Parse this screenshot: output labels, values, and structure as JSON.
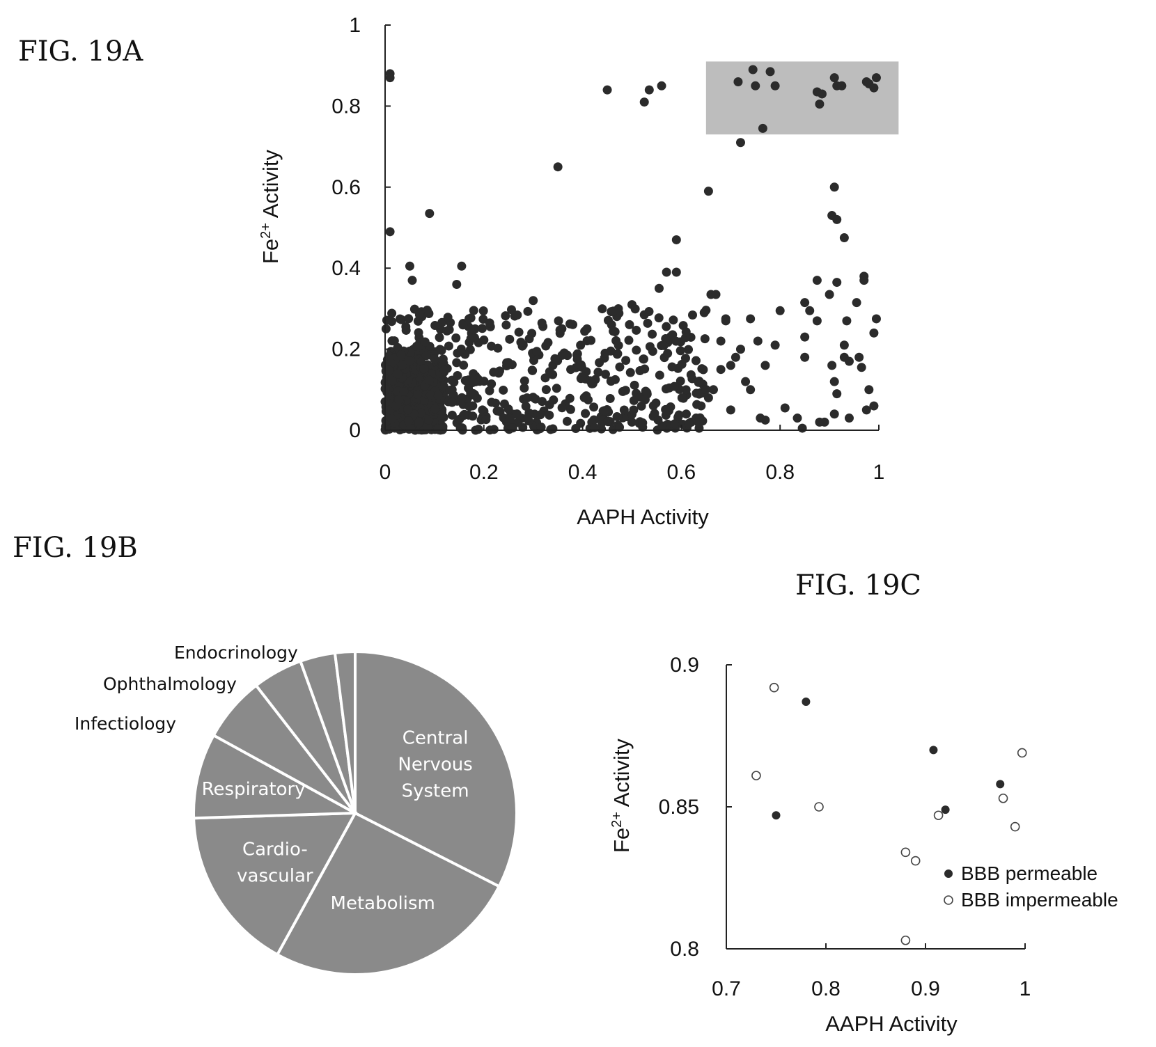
{
  "figures": {
    "a_label": "FIG. 19A",
    "b_label": "FIG. 19B",
    "c_label": "FIG. 19C"
  },
  "colors": {
    "point": "#2b2b2b",
    "highlight": "#bdbdbd",
    "pie": "#8a8a8a",
    "pie_line": "#ffffff"
  },
  "chart_data": [
    {
      "type": "scatter",
      "name": "FIG. 19A",
      "xlabel": "AAPH Activity",
      "ylabel": "Fe2+ Activity",
      "xlim": [
        0,
        1
      ],
      "ylim": [
        0,
        1
      ],
      "xticks": [
        "0",
        "0.2",
        "0.4",
        "0.6",
        "0.8",
        "1"
      ],
      "yticks": [
        "0",
        "0.2",
        "0.4",
        "0.6",
        "0.8",
        "1"
      ],
      "highlight_region": {
        "x": [
          0.65,
          1.04
        ],
        "y": [
          0.73,
          0.91
        ]
      },
      "points": [
        [
          0.01,
          0.88
        ],
        [
          0.01,
          0.87
        ],
        [
          0.01,
          0.49
        ],
        [
          0.09,
          0.535
        ],
        [
          0.35,
          0.65
        ],
        [
          0.45,
          0.84
        ],
        [
          0.525,
          0.81
        ],
        [
          0.535,
          0.84
        ],
        [
          0.56,
          0.85
        ],
        [
          0.745,
          0.89
        ],
        [
          0.715,
          0.86
        ],
        [
          0.75,
          0.85
        ],
        [
          0.78,
          0.885
        ],
        [
          0.79,
          0.85
        ],
        [
          0.72,
          0.71
        ],
        [
          0.765,
          0.745
        ],
        [
          0.875,
          0.835
        ],
        [
          0.885,
          0.83
        ],
        [
          0.88,
          0.805
        ],
        [
          0.91,
          0.87
        ],
        [
          0.915,
          0.85
        ],
        [
          0.925,
          0.85
        ],
        [
          0.975,
          0.86
        ],
        [
          0.98,
          0.855
        ],
        [
          0.99,
          0.845
        ],
        [
          0.995,
          0.87
        ],
        [
          0.655,
          0.59
        ],
        [
          0.91,
          0.6
        ],
        [
          0.905,
          0.53
        ],
        [
          0.915,
          0.52
        ],
        [
          0.93,
          0.475
        ],
        [
          0.59,
          0.47
        ],
        [
          0.05,
          0.405
        ],
        [
          0.155,
          0.405
        ],
        [
          0.145,
          0.36
        ],
        [
          0.055,
          0.37
        ],
        [
          0.57,
          0.39
        ],
        [
          0.59,
          0.39
        ],
        [
          0.555,
          0.35
        ],
        [
          0.3,
          0.32
        ],
        [
          0.5,
          0.31
        ],
        [
          0.525,
          0.285
        ],
        [
          0.66,
          0.335
        ],
        [
          0.67,
          0.335
        ],
        [
          0.97,
          0.38
        ],
        [
          0.97,
          0.37
        ],
        [
          0.875,
          0.37
        ],
        [
          0.915,
          0.365
        ],
        [
          0.955,
          0.315
        ],
        [
          0.9,
          0.335
        ],
        [
          0.995,
          0.275
        ],
        [
          0.99,
          0.24
        ],
        [
          0.85,
          0.315
        ],
        [
          0.86,
          0.295
        ],
        [
          0.8,
          0.295
        ],
        [
          0.74,
          0.275
        ],
        [
          0.69,
          0.275
        ],
        [
          0.935,
          0.27
        ],
        [
          0.875,
          0.27
        ],
        [
          0.99,
          0.06
        ],
        [
          0.975,
          0.05
        ],
        [
          0.98,
          0.1
        ],
        [
          0.965,
          0.155
        ],
        [
          0.96,
          0.18
        ],
        [
          0.905,
          0.16
        ],
        [
          0.91,
          0.12
        ],
        [
          0.915,
          0.09
        ],
        [
          0.91,
          0.04
        ],
        [
          0.94,
          0.03
        ],
        [
          0.88,
          0.02
        ],
        [
          0.89,
          0.02
        ],
        [
          0.845,
          0.005
        ],
        [
          0.835,
          0.03
        ],
        [
          0.81,
          0.055
        ],
        [
          0.77,
          0.025
        ],
        [
          0.76,
          0.03
        ],
        [
          0.7,
          0.05
        ],
        [
          0.73,
          0.12
        ],
        [
          0.74,
          0.1
        ],
        [
          0.68,
          0.15
        ],
        [
          0.665,
          0.1
        ],
        [
          0.655,
          0.08
        ],
        [
          0.64,
          0.06
        ],
        [
          0.63,
          0.03
        ],
        [
          0.62,
          0.02
        ],
        [
          0.61,
          0.04
        ],
        [
          0.72,
          0.2
        ],
        [
          0.71,
          0.18
        ],
        [
          0.85,
          0.18
        ],
        [
          0.93,
          0.21
        ],
        [
          0.93,
          0.18
        ],
        [
          0.94,
          0.17
        ],
        [
          0.85,
          0.23
        ],
        [
          0.79,
          0.21
        ],
        [
          0.77,
          0.16
        ],
        [
          0.755,
          0.22
        ],
        [
          0.7,
          0.16
        ],
        [
          0.69,
          0.27
        ],
        [
          0.68,
          0.22
        ]
      ],
      "cluster": [
        {
          "x": [
            0.0,
            0.12
          ],
          "y": [
            0.0,
            0.2
          ],
          "n": 420
        },
        {
          "x": [
            0.0,
            0.2
          ],
          "y": [
            0.0,
            0.3
          ],
          "n": 230
        },
        {
          "x": [
            0.2,
            0.65
          ],
          "y": [
            0.0,
            0.3
          ],
          "n": 300
        }
      ]
    },
    {
      "type": "pie",
      "name": "FIG. 19B",
      "labels": [
        "Central Nervous System",
        "Metabolism",
        "Cardio- vascular",
        "Respiratory",
        "Infectiology",
        "Ophthalmology",
        "Endocrinology",
        ""
      ],
      "label_lines": [
        [
          "Central",
          "Nervous",
          "System"
        ],
        [
          "Metabolism"
        ],
        [
          "Cardio-",
          "vascular"
        ],
        [
          "Respiratory"
        ],
        [
          "Infectiology"
        ],
        [
          "Ophthalmology"
        ],
        [
          "Endocrinology"
        ],
        [
          ""
        ]
      ],
      "values": [
        32.5,
        25.5,
        16.5,
        8.5,
        6.5,
        5.0,
        3.5,
        2.0
      ]
    },
    {
      "type": "scatter",
      "name": "FIG. 19C",
      "xlabel": "AAPH Activity",
      "ylabel": "Fe2+ Activity",
      "xlim": [
        0.7,
        1
      ],
      "ylim": [
        0.8,
        0.9
      ],
      "xticks": [
        "0.7",
        "0.8",
        "0.9",
        "1"
      ],
      "yticks": [
        "0.8",
        "0.85",
        "0.9"
      ],
      "legend": {
        "position": "bottom-right",
        "entries": [
          "BBB permeable",
          "BBB impermeable"
        ]
      },
      "series": [
        {
          "name": "BBB permeable",
          "marker": "filled",
          "points": [
            [
              0.78,
              0.887
            ],
            [
              0.75,
              0.847
            ],
            [
              0.908,
              0.87
            ],
            [
              0.92,
              0.849
            ],
            [
              0.975,
              0.858
            ]
          ]
        },
        {
          "name": "BBB impermeable",
          "marker": "open",
          "points": [
            [
              0.748,
              0.892
            ],
            [
              0.73,
              0.861
            ],
            [
              0.793,
              0.85
            ],
            [
              0.88,
              0.834
            ],
            [
              0.89,
              0.831
            ],
            [
              0.88,
              0.803
            ],
            [
              0.913,
              0.847
            ],
            [
              0.978,
              0.853
            ],
            [
              0.99,
              0.843
            ],
            [
              0.997,
              0.869
            ]
          ]
        }
      ]
    }
  ]
}
